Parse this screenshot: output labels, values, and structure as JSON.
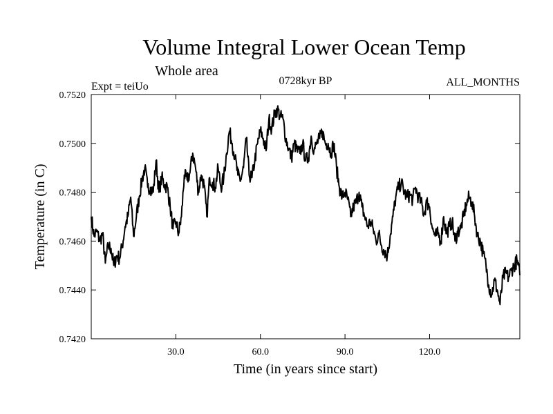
{
  "chart_data": {
    "type": "line",
    "title": "Volume Integral Lower Ocean Temp",
    "subtitle": "Whole area",
    "experiment": "Expt = teiUo",
    "period": "0728kyr BP",
    "months": "ALL_MONTHS",
    "xlabel": "Time (in years since start)",
    "ylabel": "Temperature (in C)",
    "xlim": [
      0,
      152
    ],
    "ylim": [
      0.742,
      0.752
    ],
    "x_ticks": [
      30,
      60,
      90,
      120
    ],
    "x_tick_labels": [
      "30.0",
      "60.0",
      "90.0",
      "120.0"
    ],
    "y_ticks": [
      0.742,
      0.744,
      0.746,
      0.748,
      0.75,
      0.752
    ],
    "y_tick_labels": [
      "0.7420",
      "0.7440",
      "0.7460",
      "0.7480",
      "0.7500",
      "0.7520"
    ],
    "grid": false,
    "line_color": "#000000",
    "series": [
      {
        "name": "Volume Integral Lower Ocean Temp",
        "x": [
          0,
          1,
          2,
          3,
          4,
          5,
          6,
          7,
          8,
          9,
          10,
          11,
          12,
          13,
          14,
          15,
          16,
          17,
          18,
          19,
          20,
          21,
          22,
          23,
          24,
          25,
          26,
          27,
          28,
          29,
          30,
          31,
          32,
          33,
          34,
          35,
          36,
          37,
          38,
          39,
          40,
          41,
          42,
          43,
          44,
          45,
          46,
          47,
          48,
          49,
          50,
          51,
          52,
          53,
          54,
          55,
          56,
          57,
          58,
          59,
          60,
          61,
          62,
          63,
          64,
          65,
          66,
          67,
          68,
          69,
          70,
          71,
          72,
          73,
          74,
          75,
          76,
          77,
          78,
          79,
          80,
          81,
          82,
          83,
          84,
          85,
          86,
          87,
          88,
          89,
          90,
          91,
          92,
          93,
          94,
          95,
          96,
          97,
          98,
          99,
          100,
          101,
          102,
          103,
          104,
          105,
          106,
          107,
          108,
          109,
          110,
          111,
          112,
          113,
          114,
          115,
          116,
          117,
          118,
          119,
          120,
          121,
          122,
          123,
          124,
          125,
          126,
          127,
          128,
          129,
          130,
          131,
          132,
          133,
          134,
          135,
          136,
          137,
          138,
          139,
          140,
          141,
          142,
          143,
          144,
          145,
          146,
          147,
          148,
          149,
          150,
          151,
          152
        ],
        "values": [
          0.747,
          0.7462,
          0.7464,
          0.746,
          0.7463,
          0.7451,
          0.7458,
          0.7457,
          0.745,
          0.7454,
          0.7453,
          0.7458,
          0.7466,
          0.747,
          0.7478,
          0.7462,
          0.747,
          0.7478,
          0.7485,
          0.749,
          0.7482,
          0.7482,
          0.748,
          0.7493,
          0.748,
          0.7486,
          0.7483,
          0.7482,
          0.7474,
          0.7465,
          0.7468,
          0.7463,
          0.747,
          0.7487,
          0.7485,
          0.7488,
          0.7496,
          0.749,
          0.748,
          0.7487,
          0.7483,
          0.747,
          0.7486,
          0.7484,
          0.7482,
          0.749,
          0.7482,
          0.7486,
          0.7496,
          0.7505,
          0.75,
          0.7494,
          0.7487,
          0.7485,
          0.749,
          0.7502,
          0.7487,
          0.7486,
          0.7493,
          0.75,
          0.7505,
          0.7502,
          0.7497,
          0.751,
          0.7506,
          0.7512,
          0.7514,
          0.7511,
          0.751,
          0.7502,
          0.7498,
          0.7494,
          0.75,
          0.7497,
          0.7496,
          0.75,
          0.7493,
          0.7494,
          0.7503,
          0.7497,
          0.75,
          0.7502,
          0.7505,
          0.75,
          0.75,
          0.7496,
          0.75,
          0.749,
          0.7482,
          0.7478,
          0.748,
          0.7477,
          0.747,
          0.7474,
          0.7476,
          0.748,
          0.7474,
          0.747,
          0.7466,
          0.7468,
          0.7465,
          0.746,
          0.7463,
          0.7458,
          0.7456,
          0.7454,
          0.7462,
          0.747,
          0.7478,
          0.7482,
          0.7484,
          0.748,
          0.7478,
          0.7479,
          0.7477,
          0.7482,
          0.7478,
          0.7476,
          0.7471,
          0.7476,
          0.7474,
          0.7465,
          0.7462,
          0.7463,
          0.746,
          0.747,
          0.7463,
          0.7466,
          0.7468,
          0.746,
          0.7464,
          0.7465,
          0.747,
          0.7475,
          0.7478,
          0.7476,
          0.747,
          0.7462,
          0.746,
          0.7455,
          0.745,
          0.7442,
          0.7438,
          0.7444,
          0.744,
          0.7434,
          0.7445,
          0.7447,
          0.7445,
          0.7448,
          0.745,
          0.7452,
          0.7446
        ]
      }
    ]
  }
}
